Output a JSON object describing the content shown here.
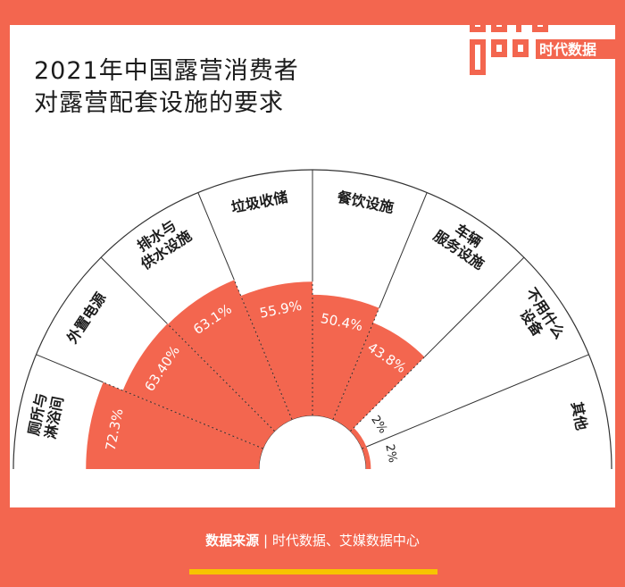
{
  "title": {
    "line1": "2021年中国露营消费者",
    "line2": "对露营配套设施的要求"
  },
  "logo": {
    "text": "时代数据"
  },
  "source": {
    "label": "数据来源",
    "separator": "|",
    "text": "时代数据、艾媒数据中心"
  },
  "colors": {
    "accent": "#f3664f",
    "yellow": "#f7c400",
    "text": "#1c1c1c",
    "line": "#333333"
  },
  "chart_data": {
    "type": "bar",
    "layout": "radial-half-circle",
    "title": "2021年中国露营消费者对露营配套设施的要求",
    "categories": [
      [
        "厕所与",
        "淋浴间"
      ],
      [
        "外置电源"
      ],
      [
        "排水与",
        "供水设施"
      ],
      [
        "垃圾收储"
      ],
      [
        "餐饮设施"
      ],
      [
        "车辆",
        "服务设施"
      ],
      [
        "不用什么",
        "设备"
      ],
      [
        "其他"
      ]
    ],
    "values": [
      72.3,
      63.4,
      63.1,
      55.9,
      50.4,
      43.8,
      2,
      2
    ],
    "value_labels": [
      "72.3%",
      "63.40%",
      "63.1%",
      "55.9%",
      "50.4%",
      "43.8%",
      "2%",
      "2%"
    ],
    "value_label_inside": [
      true,
      true,
      true,
      true,
      true,
      true,
      false,
      false
    ],
    "ylim": [
      0,
      100
    ]
  }
}
